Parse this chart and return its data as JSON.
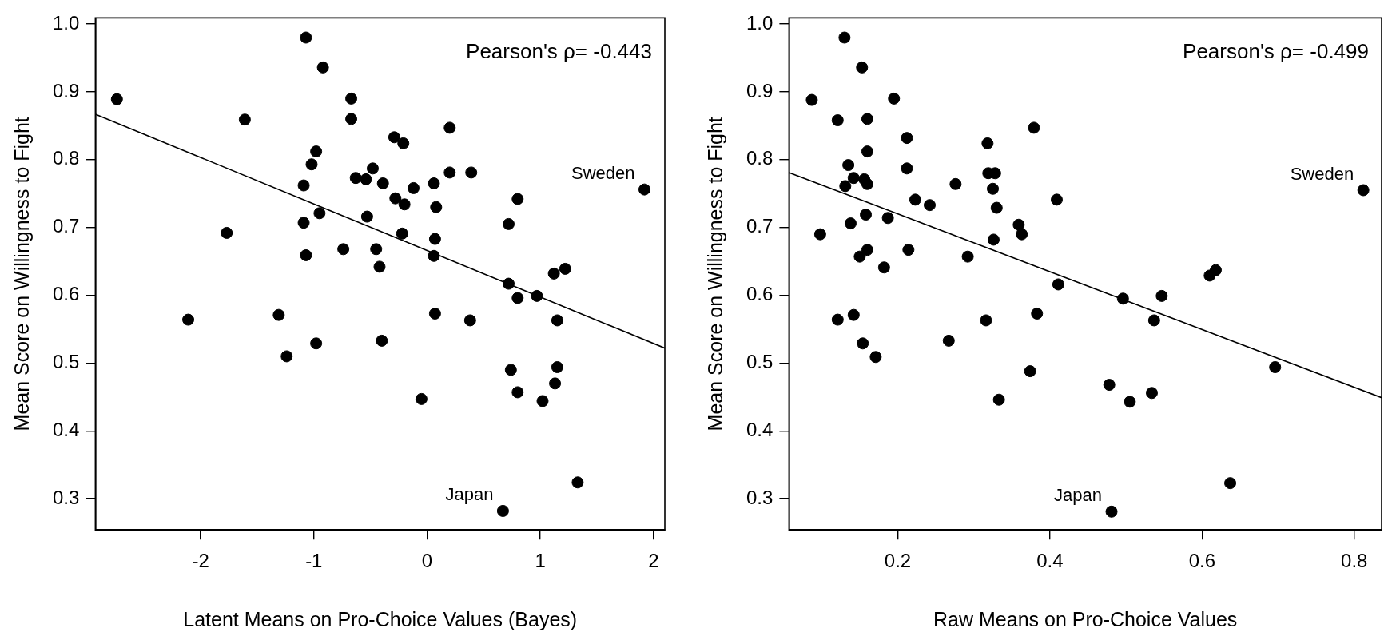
{
  "chart_data": [
    {
      "type": "scatter",
      "xlabel": "Latent Means on Pro-Choice Values (Bayes)",
      "ylabel": "Mean Score on Willingness to Fight",
      "xlim": [
        -2.93,
        2.1
      ],
      "ylim": [
        0.254,
        1.009
      ],
      "xticks": [
        -2,
        -1,
        0,
        1,
        2
      ],
      "yticks": [
        0.3,
        0.4,
        0.5,
        0.6,
        0.7,
        0.8,
        0.9,
        {
          "value": 1,
          "label": "1.0"
        }
      ],
      "grid": false,
      "legend": false,
      "marker": "circle",
      "annotations": [
        "Pearson's ρ= -0.443",
        {
          "text": "Sweden",
          "x": 1.92,
          "y": 0.756
        },
        {
          "text": "Japan",
          "x": 0.67,
          "y": 0.282
        }
      ],
      "series": [
        {
          "color": "#000000",
          "x": [
            -2.74,
            -1.07,
            -0.92,
            -0.67,
            -1.61,
            -0.67,
            0.2,
            -0.29,
            -0.21,
            -0.98,
            -1.02,
            -0.48,
            0.2,
            0.39,
            -0.63,
            -0.54,
            -0.39,
            0.06,
            -1.09,
            -0.12,
            1.92,
            0.8,
            -0.28,
            -0.2,
            0.08,
            -0.95,
            -0.53,
            -1.09,
            0.72,
            -1.77,
            -0.22,
            0.07,
            -0.74,
            -0.45,
            -1.07,
            0.06,
            -0.42,
            1.22,
            1.12,
            0.72,
            0.8,
            0.97,
            -2.11,
            -1.31,
            0.07,
            0.38,
            1.15,
            -0.98,
            -0.4,
            -1.24,
            0.74,
            1.15,
            1.13,
            0.8,
            -0.05,
            1.02,
            1.33,
            0.67
          ],
          "values": [
            0.889,
            0.98,
            0.936,
            0.89,
            0.859,
            0.86,
            0.847,
            0.833,
            0.824,
            0.812,
            0.793,
            0.787,
            0.781,
            0.781,
            0.773,
            0.771,
            0.765,
            0.765,
            0.762,
            0.758,
            0.756,
            0.742,
            0.743,
            0.734,
            0.73,
            0.721,
            0.716,
            0.707,
            0.705,
            0.692,
            0.691,
            0.683,
            0.668,
            0.668,
            0.659,
            0.658,
            0.642,
            0.639,
            0.632,
            0.617,
            0.596,
            0.599,
            0.564,
            0.571,
            0.573,
            0.563,
            0.563,
            0.529,
            0.533,
            0.51,
            0.49,
            0.494,
            0.47,
            0.457,
            0.447,
            0.444,
            0.324,
            0.282
          ]
        },
        {
          "type": "line",
          "color": "#000000",
          "marker": "none",
          "x": [
            -2.93,
            2.1
          ],
          "values": [
            0.867,
            0.522
          ]
        }
      ]
    },
    {
      "type": "scatter",
      "xlabel": "Raw Means on Pro-Choice Values",
      "ylabel": "Mean Score on Willingness to Fight",
      "xlim": [
        0.057,
        0.836
      ],
      "ylim": [
        0.254,
        1.009
      ],
      "xticks": [
        0.2,
        0.4,
        0.6,
        0.8
      ],
      "yticks": [
        0.3,
        0.4,
        0.5,
        0.6,
        0.7,
        0.8,
        0.9,
        {
          "value": 1,
          "label": "1.0"
        }
      ],
      "grid": false,
      "legend": false,
      "marker": "circle",
      "annotations": [
        "Pearson's ρ= -0.499",
        {
          "text": "Sweden",
          "x": 0.812,
          "y": 0.755
        },
        {
          "text": "Japan",
          "x": 0.481,
          "y": 0.281
        }
      ],
      "series": [
        {
          "color": "#000000",
          "x": [
            0.13,
            0.153,
            0.087,
            0.195,
            0.121,
            0.16,
            0.379,
            0.212,
            0.318,
            0.16,
            0.135,
            0.212,
            0.319,
            0.328,
            0.142,
            0.156,
            0.16,
            0.276,
            0.131,
            0.325,
            0.812,
            0.409,
            0.223,
            0.242,
            0.33,
            0.158,
            0.187,
            0.138,
            0.359,
            0.098,
            0.363,
            0.326,
            0.214,
            0.16,
            0.15,
            0.292,
            0.182,
            0.618,
            0.61,
            0.411,
            0.496,
            0.547,
            0.121,
            0.142,
            0.383,
            0.316,
            0.537,
            0.154,
            0.267,
            0.171,
            0.374,
            0.696,
            0.478,
            0.534,
            0.333,
            0.505,
            0.637,
            0.481
          ],
          "values": [
            0.98,
            0.936,
            0.888,
            0.89,
            0.858,
            0.86,
            0.847,
            0.832,
            0.824,
            0.812,
            0.792,
            0.787,
            0.78,
            0.78,
            0.773,
            0.771,
            0.764,
            0.764,
            0.761,
            0.757,
            0.755,
            0.741,
            0.741,
            0.733,
            0.729,
            0.719,
            0.714,
            0.706,
            0.704,
            0.69,
            0.69,
            0.682,
            0.667,
            0.667,
            0.657,
            0.657,
            0.641,
            0.637,
            0.629,
            0.616,
            0.595,
            0.599,
            0.564,
            0.571,
            0.573,
            0.563,
            0.563,
            0.529,
            0.533,
            0.509,
            0.488,
            0.494,
            0.468,
            0.456,
            0.446,
            0.443,
            0.323,
            0.281
          ]
        },
        {
          "type": "line",
          "color": "#000000",
          "marker": "none",
          "x": [
            0.057,
            0.836
          ],
          "values": [
            0.781,
            0.449
          ]
        }
      ]
    }
  ]
}
